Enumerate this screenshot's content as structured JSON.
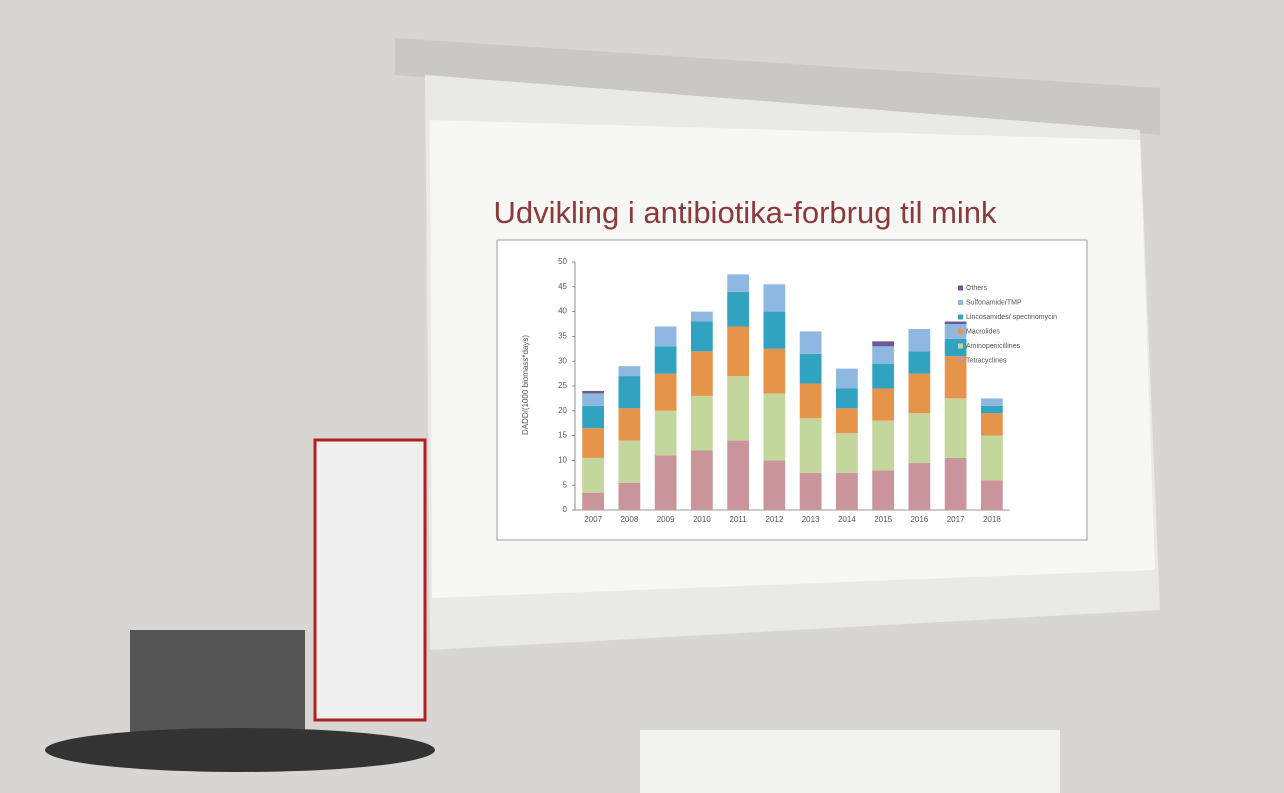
{
  "chart_data": {
    "type": "stacked-bar",
    "title": "Udvikling i antibiotika-forbrug til mink",
    "y_label": "DADD/(1000 biomass*days)",
    "categories": [
      "2007",
      "2008",
      "2009",
      "2010",
      "2011",
      "2012",
      "2013",
      "2014",
      "2015",
      "2016",
      "2017",
      "2018"
    ],
    "series": [
      {
        "name": "Tetracyclines",
        "color": "#c9959a",
        "values": [
          3.5,
          5.5,
          11,
          12,
          14,
          10,
          7.5,
          7.5,
          8,
          9.5,
          10.5,
          6
        ]
      },
      {
        "name": "Aminopenicillines",
        "color": "#c3d69b",
        "values": [
          7,
          8.5,
          9,
          11,
          13,
          13.5,
          11,
          8,
          10,
          10,
          12,
          9
        ]
      },
      {
        "name": "Macrolides",
        "color": "#e6944a",
        "values": [
          6,
          6.5,
          7.5,
          9,
          10,
          9,
          7,
          5,
          6.5,
          8,
          8.5,
          4.5
        ]
      },
      {
        "name": "Lincosamides/ spectinomycin",
        "color": "#31a3c0",
        "values": [
          4.5,
          6.5,
          5.5,
          6,
          7,
          7.5,
          6,
          4,
          5,
          4.5,
          3.5,
          1.5
        ]
      },
      {
        "name": "Sulfonamide/TMP",
        "color": "#8fb8e0",
        "values": [
          2.5,
          2,
          4,
          2,
          3.5,
          5.5,
          4.5,
          4,
          3.5,
          4.5,
          3,
          1.5
        ]
      },
      {
        "name": "Others",
        "color": "#6b5a9a",
        "values": [
          0.5,
          0,
          0,
          0,
          0,
          0,
          0,
          0,
          1,
          0,
          0.5,
          0
        ]
      }
    ],
    "ylim": [
      0,
      50
    ],
    "yticks": [
      0,
      5,
      10,
      15,
      20,
      25,
      30,
      35,
      40,
      45,
      50
    ]
  }
}
